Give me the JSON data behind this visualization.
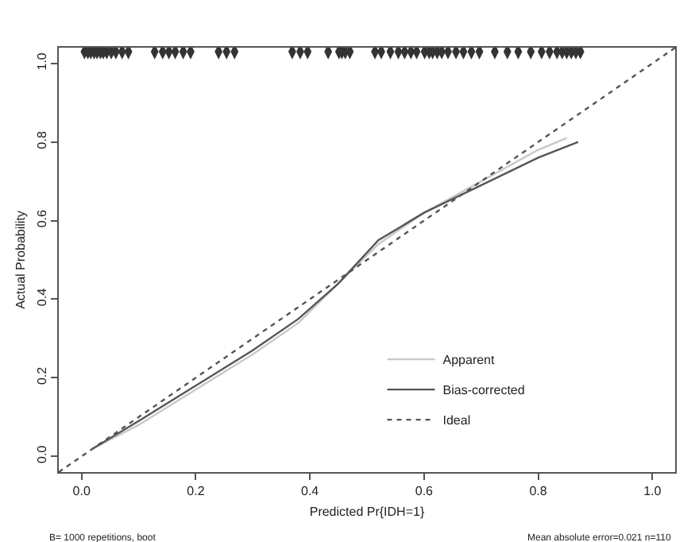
{
  "chart_data": {
    "type": "line",
    "xlabel": "Predicted Pr{IDH=1}",
    "ylabel": "Actual Probability",
    "xlim": [
      -0.04,
      1.04
    ],
    "ylim": [
      -0.04,
      1.04
    ],
    "xticks": [
      {
        "value": 0,
        "label": "0.0"
      },
      {
        "value": 0.2,
        "label": "0.2"
      },
      {
        "value": 0.4,
        "label": "0.4"
      },
      {
        "value": 0.6,
        "label": "0.6"
      },
      {
        "value": 0.8,
        "label": "0.8"
      },
      {
        "value": 1,
        "label": "1.0"
      }
    ],
    "yticks": [
      {
        "value": 0,
        "label": "0.0"
      },
      {
        "value": 0.2,
        "label": "0.2"
      },
      {
        "value": 0.4,
        "label": "0.4"
      },
      {
        "value": 0.6,
        "label": "0.6"
      },
      {
        "value": 0.8,
        "label": "0.8"
      },
      {
        "value": 1,
        "label": "1.0"
      }
    ],
    "legend": "bottom right",
    "series": [
      {
        "name": "Apparent",
        "color": "#c8c8c8",
        "line_style": "solid",
        "x": [
          0.02,
          0.1,
          0.2,
          0.3,
          0.38,
          0.45,
          0.52,
          0.6,
          0.7,
          0.8,
          0.85
        ],
        "values": [
          0.02,
          0.08,
          0.17,
          0.26,
          0.34,
          0.44,
          0.54,
          0.62,
          0.7,
          0.78,
          0.81
        ]
      },
      {
        "name": "Bias-corrected",
        "color": "#555555",
        "line_style": "solid",
        "x": [
          0.02,
          0.1,
          0.2,
          0.3,
          0.38,
          0.45,
          0.52,
          0.6,
          0.7,
          0.8,
          0.87
        ],
        "values": [
          0.02,
          0.09,
          0.18,
          0.27,
          0.35,
          0.44,
          0.55,
          0.62,
          0.69,
          0.76,
          0.8
        ]
      },
      {
        "name": "Ideal",
        "color": "#555555",
        "line_style": "dotted",
        "x": [
          -0.04,
          1.04
        ],
        "values": [
          -0.04,
          1.04
        ]
      },
      {
        "type": "scatter",
        "color": "#333333",
        "x": [
          0.005,
          0.011,
          0.016,
          0.022,
          0.027,
          0.033,
          0.038,
          0.044,
          0.052,
          0.06,
          0.071,
          0.082,
          0.128,
          0.142,
          0.153,
          0.164,
          0.178,
          0.191,
          0.24,
          0.254,
          0.268,
          0.369,
          0.383,
          0.396,
          0.432,
          0.451,
          0.456,
          0.462,
          0.47,
          0.514,
          0.525,
          0.541,
          0.555,
          0.566,
          0.577,
          0.587,
          0.601,
          0.609,
          0.615,
          0.623,
          0.631,
          0.642,
          0.656,
          0.669,
          0.683,
          0.697,
          0.724,
          0.746,
          0.765,
          0.787,
          0.806,
          0.82,
          0.833,
          0.842,
          0.85,
          0.858,
          0.866,
          0.874
        ],
        "values": [
          1.03,
          1.03,
          1.03,
          1.03,
          1.03,
          1.03,
          1.03,
          1.03,
          1.03,
          1.03,
          1.03,
          1.03,
          1.03,
          1.03,
          1.03,
          1.03,
          1.03,
          1.03,
          1.03,
          1.03,
          1.03,
          1.03,
          1.03,
          1.03,
          1.03,
          1.03,
          1.03,
          1.03,
          1.03,
          1.03,
          1.03,
          1.03,
          1.03,
          1.03,
          1.03,
          1.03,
          1.03,
          1.03,
          1.03,
          1.03,
          1.03,
          1.03,
          1.03,
          1.03,
          1.03,
          1.03,
          1.03,
          1.03,
          1.03,
          1.03,
          1.03,
          1.03,
          1.03,
          1.03,
          1.03,
          1.03,
          1.03,
          1.03
        ]
      }
    ],
    "annotations": [
      "B= 1000 repetitions, boot",
      "Mean absolute error=0.021 n=110"
    ]
  }
}
